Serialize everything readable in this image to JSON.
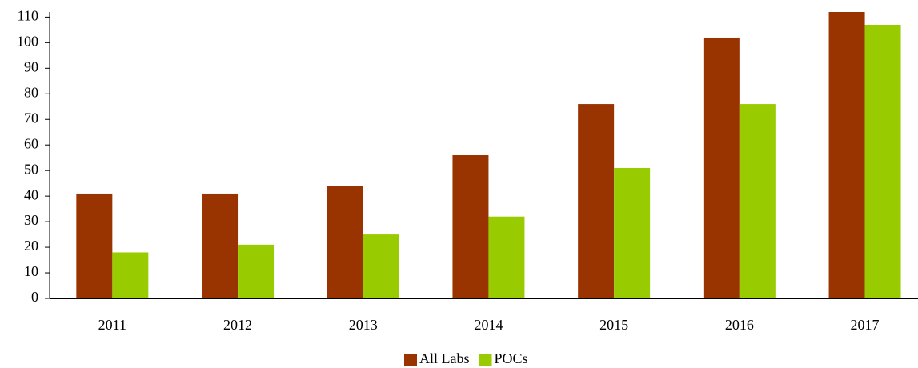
{
  "chart_data": {
    "type": "bar",
    "categories": [
      "2011",
      "2012",
      "2013",
      "2014",
      "2015",
      "2016",
      "2017"
    ],
    "series": [
      {
        "name": "All Labs",
        "color": "#993300",
        "values": [
          41,
          41,
          44,
          56,
          76,
          102,
          112
        ]
      },
      {
        "name": "POCs",
        "color": "#99cc00",
        "values": [
          18,
          21,
          25,
          32,
          51,
          76,
          107
        ]
      }
    ],
    "ylim": [
      0,
      112
    ],
    "yticks": [
      0,
      10,
      20,
      30,
      40,
      50,
      60,
      70,
      80,
      90,
      100,
      110
    ],
    "legend": "bottom"
  }
}
